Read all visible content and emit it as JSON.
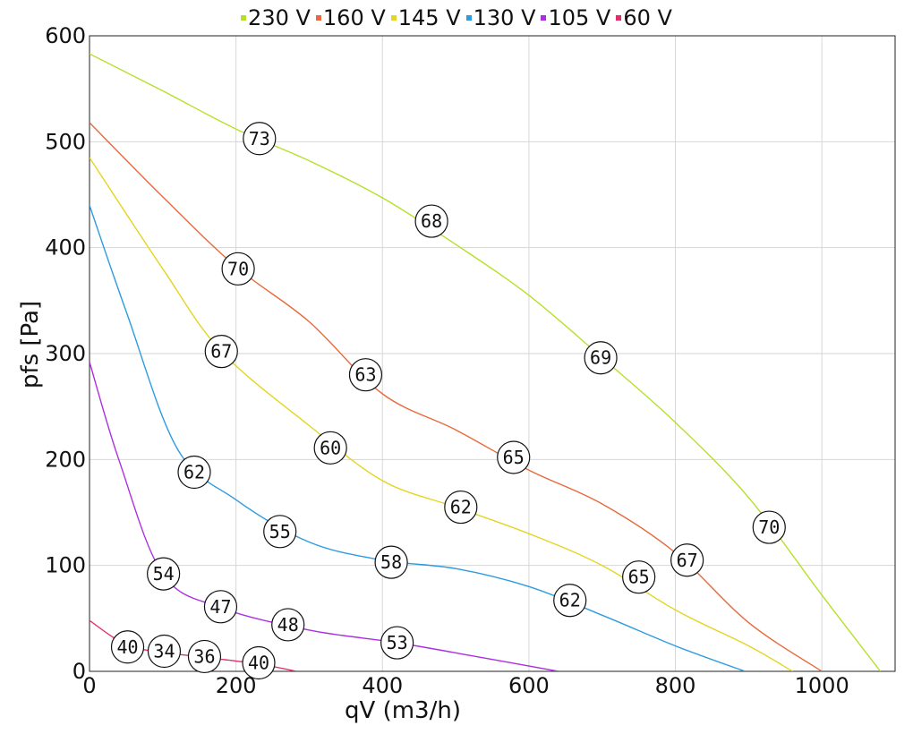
{
  "chart_data": {
    "type": "line",
    "xlabel": "qV (m3/h)",
    "ylabel": "pfs [Pa]",
    "xlim": [
      0,
      1100
    ],
    "ylim": [
      0,
      600
    ],
    "x_ticks": [
      "0",
      "200",
      "400",
      "600",
      "800",
      "1000"
    ],
    "y_ticks": [
      "0",
      "100",
      "200",
      "300",
      "400",
      "500",
      "600"
    ],
    "grid": true,
    "legend_position": "top",
    "series": [
      {
        "name": "230 V",
        "color": "#b5e02a",
        "points": [
          [
            0,
            583
          ],
          [
            100,
            548
          ],
          [
            200,
            512
          ],
          [
            300,
            482
          ],
          [
            400,
            447
          ],
          [
            500,
            403
          ],
          [
            600,
            355
          ],
          [
            700,
            296
          ],
          [
            800,
            235
          ],
          [
            900,
            164
          ],
          [
            1000,
            72
          ],
          [
            1080,
            0
          ]
        ],
        "labels": [
          {
            "x": 232,
            "y": 503,
            "text": "73"
          },
          {
            "x": 467,
            "y": 425,
            "text": "68"
          },
          {
            "x": 698,
            "y": 296,
            "text": "69"
          },
          {
            "x": 928,
            "y": 136,
            "text": "70"
          }
        ]
      },
      {
        "name": "160 V",
        "color": "#e8693a",
        "points": [
          [
            0,
            518
          ],
          [
            100,
            448
          ],
          [
            200,
            382
          ],
          [
            300,
            330
          ],
          [
            400,
            262
          ],
          [
            500,
            228
          ],
          [
            600,
            190
          ],
          [
            700,
            158
          ],
          [
            800,
            112
          ],
          [
            900,
            46
          ],
          [
            1000,
            0
          ]
        ],
        "labels": [
          {
            "x": 203,
            "y": 380,
            "text": "70"
          },
          {
            "x": 377,
            "y": 280,
            "text": "63"
          },
          {
            "x": 579,
            "y": 202,
            "text": "65"
          },
          {
            "x": 816,
            "y": 105,
            "text": "67"
          }
        ]
      },
      {
        "name": "145 V",
        "color": "#e3d522",
        "points": [
          [
            0,
            485
          ],
          [
            100,
            380
          ],
          [
            180,
            302
          ],
          [
            300,
            232
          ],
          [
            400,
            180
          ],
          [
            500,
            155
          ],
          [
            600,
            130
          ],
          [
            700,
            100
          ],
          [
            800,
            58
          ],
          [
            900,
            24
          ],
          [
            960,
            0
          ]
        ],
        "labels": [
          {
            "x": 180,
            "y": 302,
            "text": "67"
          },
          {
            "x": 329,
            "y": 211,
            "text": "60"
          },
          {
            "x": 507,
            "y": 155,
            "text": "62"
          },
          {
            "x": 750,
            "y": 89,
            "text": "65"
          }
        ]
      },
      {
        "name": "130 V",
        "color": "#2d9be0",
        "points": [
          [
            0,
            440
          ],
          [
            50,
            340
          ],
          [
            120,
            210
          ],
          [
            200,
            162
          ],
          [
            300,
            122
          ],
          [
            400,
            105
          ],
          [
            500,
            97
          ],
          [
            600,
            80
          ],
          [
            700,
            53
          ],
          [
            800,
            24
          ],
          [
            895,
            0
          ]
        ],
        "labels": [
          {
            "x": 143,
            "y": 188,
            "text": "62"
          },
          {
            "x": 260,
            "y": 132,
            "text": "55"
          },
          {
            "x": 412,
            "y": 103,
            "text": "58"
          },
          {
            "x": 656,
            "y": 67,
            "text": "62"
          }
        ]
      },
      {
        "name": "105 V",
        "color": "#ac30e0",
        "points": [
          [
            0,
            292
          ],
          [
            40,
            200
          ],
          [
            100,
            92
          ],
          [
            180,
            60
          ],
          [
            300,
            39
          ],
          [
            420,
            27
          ],
          [
            520,
            15
          ],
          [
            640,
            0
          ]
        ],
        "labels": [
          {
            "x": 101,
            "y": 92,
            "text": "54"
          },
          {
            "x": 179,
            "y": 61,
            "text": "47"
          },
          {
            "x": 271,
            "y": 44,
            "text": "48"
          },
          {
            "x": 420,
            "y": 27,
            "text": "53"
          }
        ]
      },
      {
        "name": "60 V",
        "color": "#e0306a",
        "points": [
          [
            0,
            48
          ],
          [
            50,
            25
          ],
          [
            100,
            18
          ],
          [
            160,
            13
          ],
          [
            230,
            7
          ],
          [
            283,
            0
          ]
        ],
        "labels": [
          {
            "x": 52,
            "y": 23,
            "text": "40"
          },
          {
            "x": 102,
            "y": 19,
            "text": "34"
          },
          {
            "x": 157,
            "y": 14,
            "text": "36"
          },
          {
            "x": 231,
            "y": 8,
            "text": "40"
          }
        ]
      }
    ]
  }
}
